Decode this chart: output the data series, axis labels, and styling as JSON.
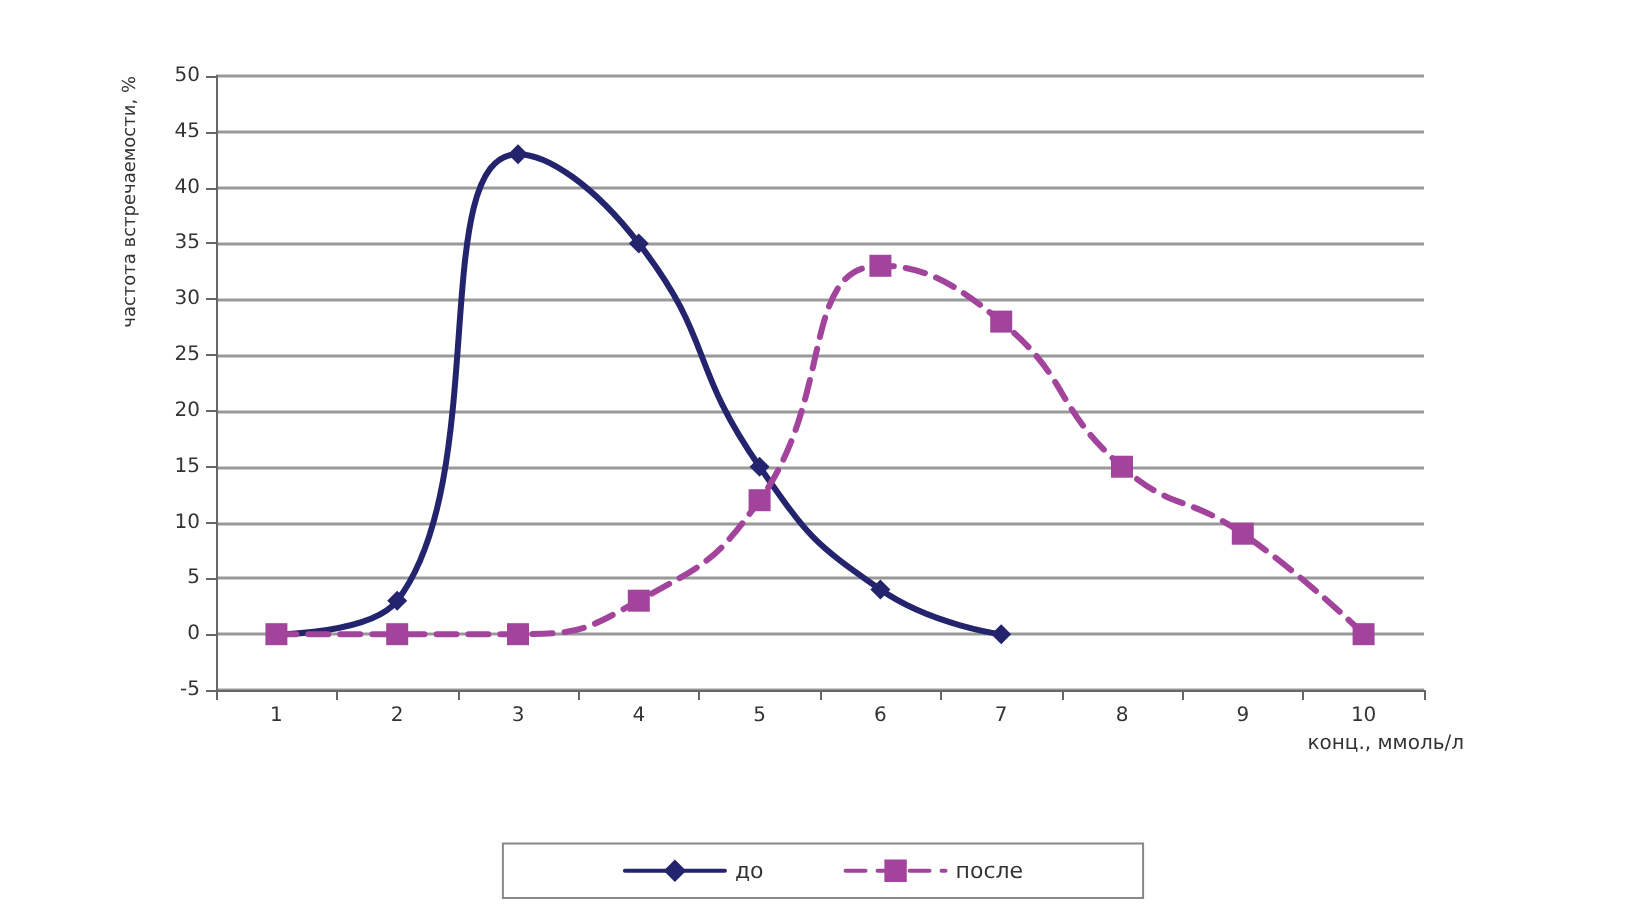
{
  "chart_data": {
    "type": "line",
    "ylabel": "частота встречаемости, %",
    "xlabel": "конц., ммоль/л",
    "categories": [
      "1",
      "2",
      "3",
      "4",
      "5",
      "6",
      "7",
      "8",
      "9",
      "10"
    ],
    "series": [
      {
        "name": "до",
        "color": "#24246e",
        "marker": "diamond",
        "line_style": "solid",
        "values": [
          0,
          3,
          43,
          35,
          15,
          4,
          0,
          null,
          null,
          null
        ]
      },
      {
        "name": "после",
        "color": "#a3449c",
        "marker": "square",
        "line_style": "dashed",
        "values": [
          0,
          0,
          0,
          3,
          12,
          33,
          28,
          15,
          9,
          0
        ]
      }
    ],
    "ylim": [
      -5,
      50
    ],
    "yticks": [
      -5,
      0,
      5,
      10,
      15,
      20,
      25,
      30,
      35,
      40,
      45,
      50
    ],
    "grid": "y",
    "legend": "bottom"
  }
}
